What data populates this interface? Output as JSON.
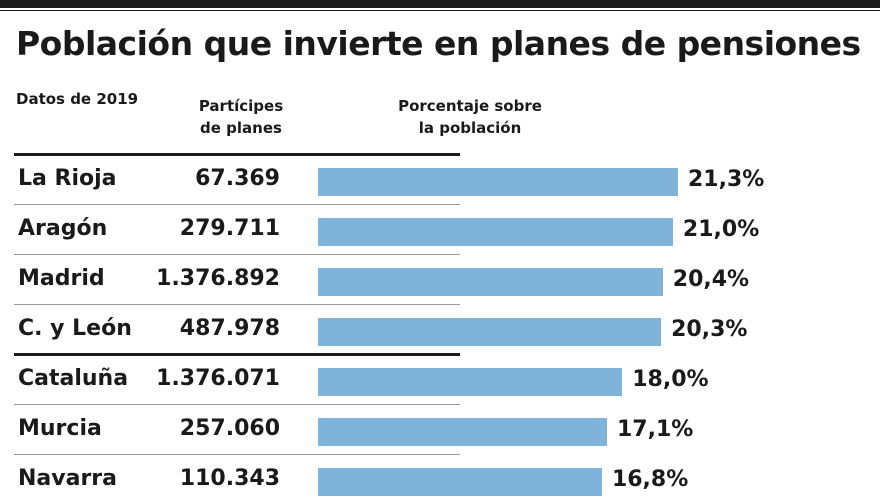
{
  "title": "Población que invierte en planes de pensiones",
  "columns": {
    "note": "Datos de 2019",
    "participants_line1": "Partícipes",
    "participants_line2": "de planes",
    "percentage_line1": "Porcentaje sobre",
    "percentage_line2": "la población"
  },
  "colors": {
    "bar": "#7fb3d9",
    "text": "#1a1a1a"
  },
  "chart_data": {
    "type": "bar",
    "orientation": "horizontal",
    "title": "Población que invierte en planes de pensiones",
    "categories": [
      "La Rioja",
      "Aragón",
      "Madrid",
      "C. y León",
      "Cataluña",
      "Murcia",
      "Navarra"
    ],
    "participants": [
      "67.369",
      "279.711",
      "1.376.892",
      "487.978",
      "1.376.071",
      "257.060",
      "110.343"
    ],
    "values": [
      21.3,
      21.0,
      20.4,
      20.3,
      18.0,
      17.1,
      16.8
    ],
    "value_labels": [
      "21,3%",
      "21,0%",
      "20,4%",
      "20,3%",
      "18,0%",
      "17,1%",
      "16,8%"
    ],
    "bar_color": "#7fb3d9"
  }
}
